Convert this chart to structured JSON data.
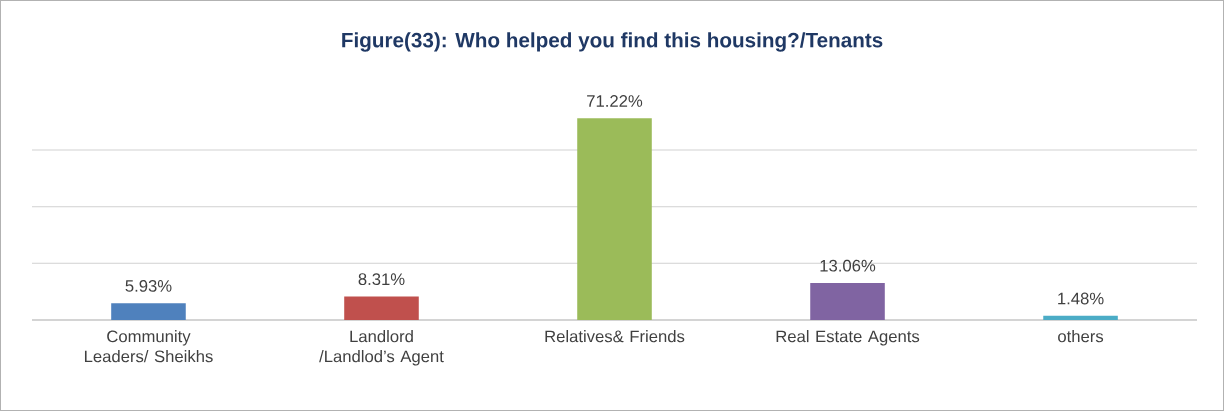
{
  "chart_data": {
    "type": "bar",
    "title": "Figure(33): Who helped you find this housing?/Tenants",
    "categories": [
      "Community Leaders/ Sheikhs",
      "Landlord /Landlod’s Agent",
      "Relatives& Friends",
      "Real Estate Agents",
      "others"
    ],
    "values": [
      5.93,
      8.31,
      71.22,
      13.06,
      1.48
    ],
    "value_labels": [
      "5.93%",
      "8.31%",
      "71.22%",
      "13.06%",
      "1.48%"
    ],
    "colors": [
      "#4f81bd",
      "#c0504d",
      "#9bbb59",
      "#8064a2",
      "#4bacc6"
    ],
    "grid": "y",
    "tick_labels": "x"
  }
}
